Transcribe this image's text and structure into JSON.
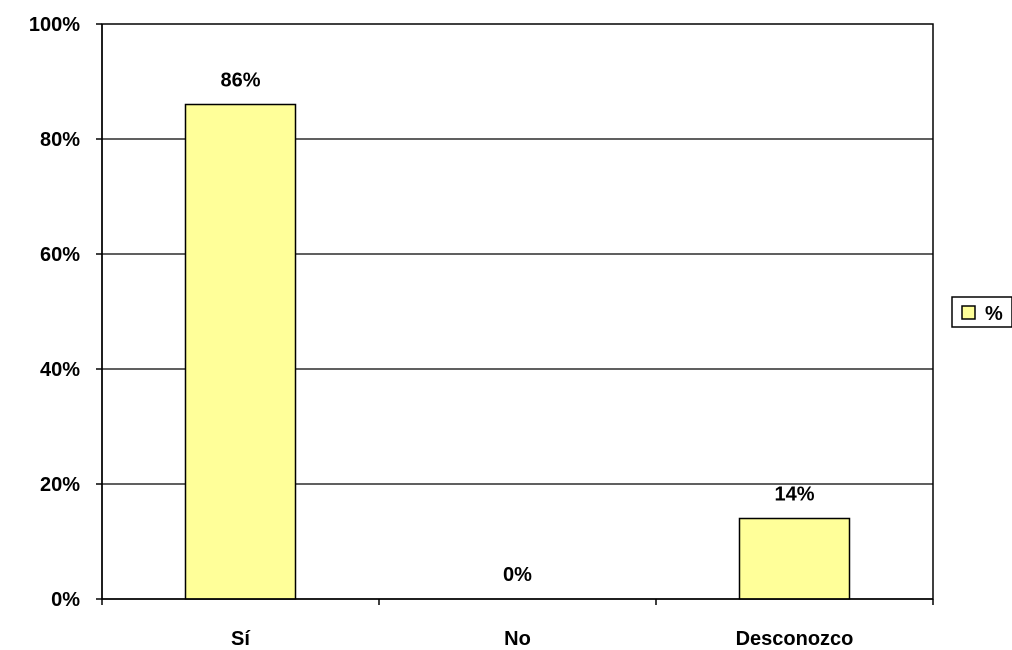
{
  "chart_data": {
    "type": "bar",
    "categories": [
      "Sí",
      "No",
      "Desconozco"
    ],
    "series": [
      {
        "name": "%",
        "values": [
          86,
          0,
          14
        ]
      }
    ],
    "data_labels": [
      "86%",
      "0%",
      "14%"
    ],
    "title": "",
    "xlabel": "",
    "ylabel": "",
    "ylim": [
      0,
      100
    ],
    "yticks": [
      0,
      20,
      40,
      60,
      80,
      100
    ],
    "ytick_labels": [
      "0%",
      "20%",
      "40%",
      "60%",
      "80%",
      "100%"
    ],
    "grid": true,
    "legend": {
      "position": "right",
      "entries": [
        "%"
      ]
    },
    "colors": {
      "bar_fill": "#FFFF99",
      "bar_stroke": "#000000",
      "axis": "#000000",
      "grid": "#000000",
      "background": "#FFFFFF"
    }
  }
}
